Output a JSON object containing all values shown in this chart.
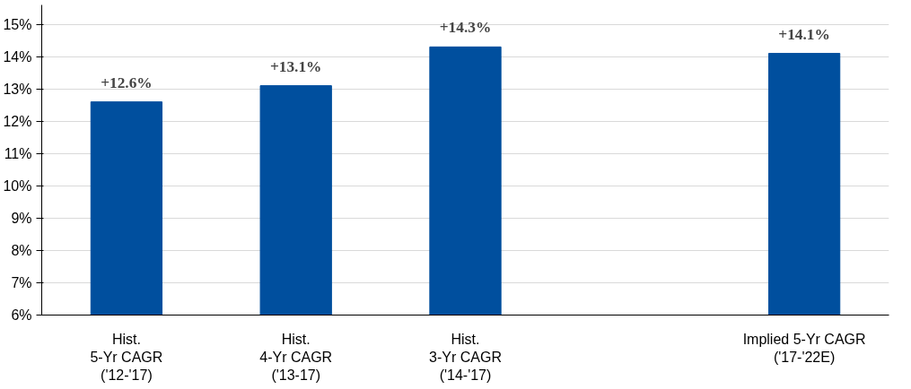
{
  "chart_data": {
    "type": "bar",
    "categories": [
      "Hist.\n5-Yr CAGR\n('12-'17)",
      "Hist.\n4-Yr CAGR\n('13-17)",
      "Hist.\n3-Yr CAGR\n('14-'17)",
      null,
      "Implied 5-Yr CAGR\n('17-'22E)"
    ],
    "values": [
      12.6,
      13.1,
      14.3,
      null,
      14.1
    ],
    "color": "#004f9e",
    "value_labels": [
      "+12.6%",
      "+13.1%",
      "+14.3%",
      null,
      "+14.1%"
    ],
    "ylim": [
      6,
      15
    ],
    "yticks": [
      {
        "value": 6,
        "label": "6%"
      },
      {
        "value": 7,
        "label": "7%"
      },
      {
        "value": 8,
        "label": "8%"
      },
      {
        "value": 9,
        "label": "9%"
      },
      {
        "value": 10,
        "label": "10%"
      },
      {
        "value": 11,
        "label": "11%"
      },
      {
        "value": 12,
        "label": "12%"
      },
      {
        "value": 13,
        "label": "13%"
      },
      {
        "value": 14,
        "label": "14%"
      },
      {
        "value": 15,
        "label": "15%"
      }
    ],
    "grid": "y"
  }
}
